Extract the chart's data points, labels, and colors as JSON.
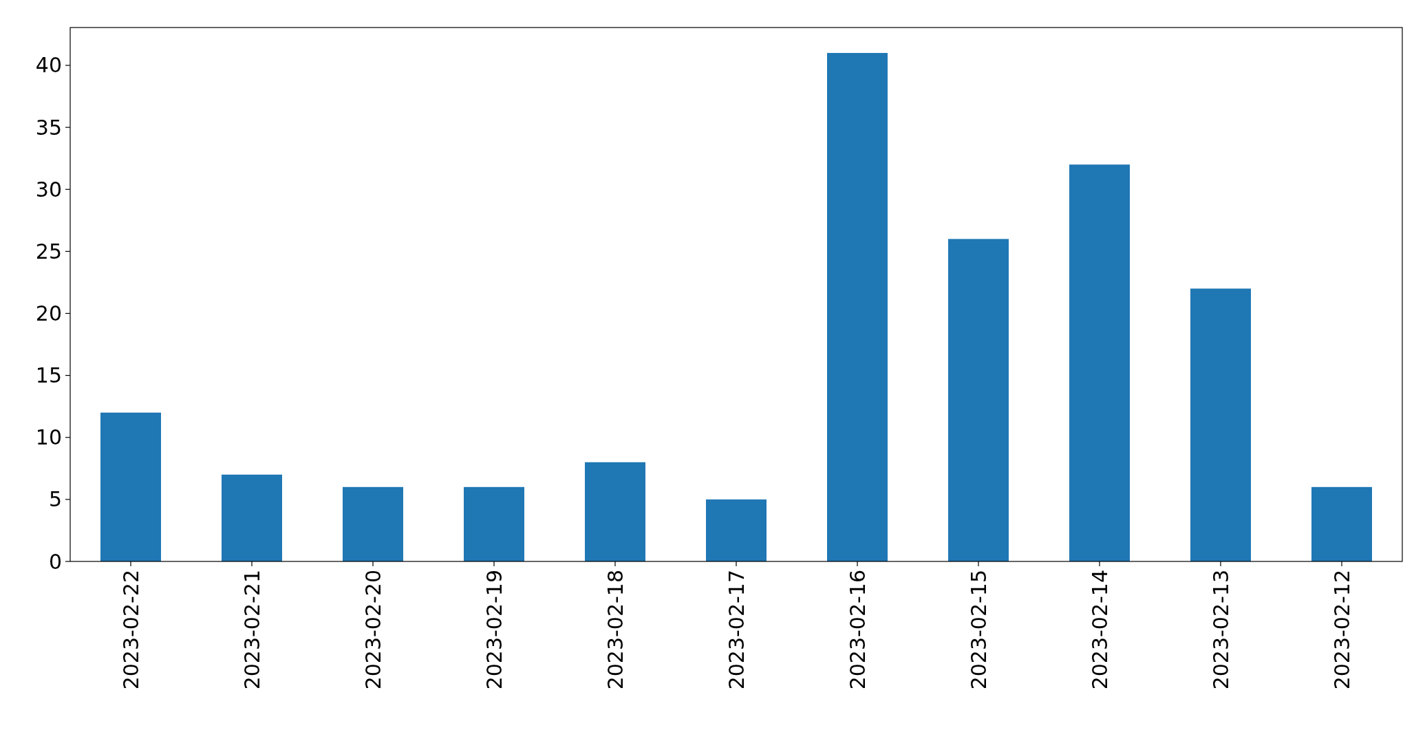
{
  "chart_data": {
    "type": "bar",
    "categories": [
      "2023-02-22",
      "2023-02-21",
      "2023-02-20",
      "2023-02-19",
      "2023-02-18",
      "2023-02-17",
      "2023-02-16",
      "2023-02-15",
      "2023-02-14",
      "2023-02-13",
      "2023-02-12"
    ],
    "values": [
      12,
      7,
      6,
      6,
      8,
      5,
      41,
      26,
      32,
      22,
      6
    ],
    "color": "#1f77b4",
    "ylim": [
      0,
      43.05
    ],
    "yticks": [
      0,
      5,
      10,
      15,
      20,
      25,
      30,
      35,
      40
    ]
  }
}
